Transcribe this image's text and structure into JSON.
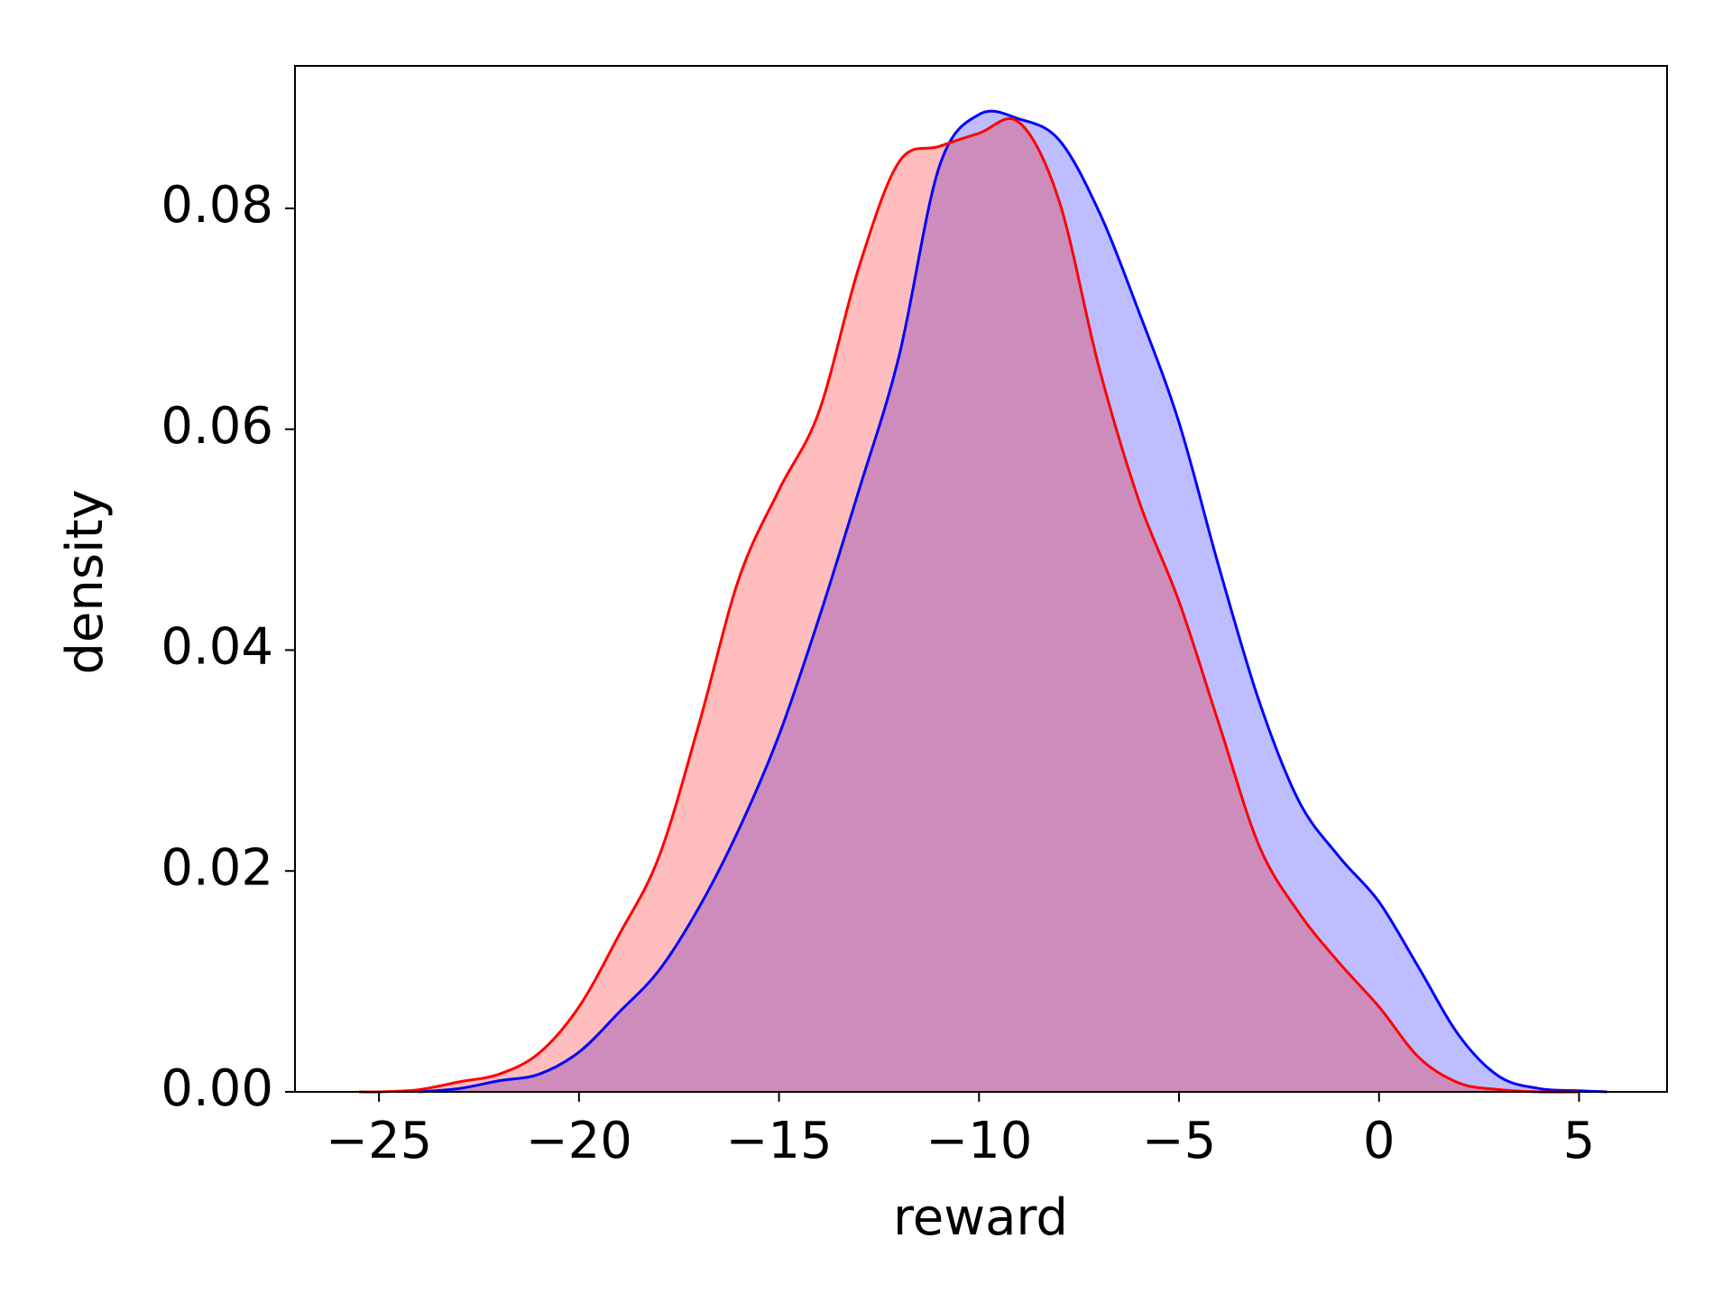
{
  "chart_data": {
    "type": "area",
    "x_label": "reward",
    "y_label": "density",
    "xlim": [
      -27.1,
      7.2
    ],
    "ylim": [
      0,
      0.0929
    ],
    "xticks": [
      {
        "value": -25,
        "label": "−25"
      },
      {
        "value": -20,
        "label": "−20"
      },
      {
        "value": -15,
        "label": "−15"
      },
      {
        "value": -10,
        "label": "−10"
      },
      {
        "value": -5,
        "label": "−5"
      },
      0,
      5
    ],
    "yticks": [
      {
        "value": 0,
        "label": "0.00"
      },
      {
        "value": 0.02,
        "label": "0.02"
      },
      {
        "value": 0.04,
        "label": "0.04"
      },
      {
        "value": 0.06,
        "label": "0.06"
      },
      {
        "value": 0.08,
        "label": "0.08"
      }
    ],
    "grid": false,
    "series": [
      {
        "color": "#0000ff",
        "fill": "rgba(0,0,255,0.26)",
        "x": [
          -24,
          -23,
          -22,
          -21,
          -20,
          -19,
          -18,
          -17,
          -16,
          -15,
          -14,
          -13,
          -12,
          -11,
          -10,
          -9,
          -8,
          -7,
          -6,
          -5,
          -4,
          -3,
          -2,
          -1,
          0,
          1,
          2,
          3,
          4,
          5,
          5.7
        ],
        "values": [
          0,
          0.0003,
          0.001,
          0.0016,
          0.0036,
          0.0072,
          0.011,
          0.0167,
          0.0238,
          0.0323,
          0.0429,
          0.0545,
          0.0666,
          0.0837,
          0.0885,
          0.0881,
          0.0862,
          0.0797,
          0.0706,
          0.0606,
          0.0475,
          0.0354,
          0.0263,
          0.0213,
          0.0172,
          0.0112,
          0.0051,
          0.0014,
          0.0003,
          0.0001,
          0
        ]
      },
      {
        "color": "#ff0000",
        "fill": "rgba(255,0,0,0.26)",
        "x": [
          -25.5,
          -25,
          -24,
          -23,
          -22,
          -21,
          -20,
          -19,
          -18,
          -17,
          -16,
          -15,
          -14,
          -13,
          -12,
          -11,
          -10,
          -9,
          -8,
          -7,
          -6,
          -5,
          -4,
          -3,
          -2,
          -1,
          0,
          1,
          2,
          3,
          4,
          5
        ],
        "values": [
          0,
          0,
          0.0002,
          0.0009,
          0.0016,
          0.0035,
          0.0077,
          0.0142,
          0.0213,
          0.0333,
          0.0465,
          0.0545,
          0.0616,
          0.0747,
          0.0842,
          0.0856,
          0.0868,
          0.0878,
          0.0807,
          0.0656,
          0.0535,
          0.0444,
          0.0333,
          0.0223,
          0.0162,
          0.0117,
          0.0077,
          0.0031,
          0.0008,
          0.0002,
          0,
          0
        ]
      }
    ]
  }
}
